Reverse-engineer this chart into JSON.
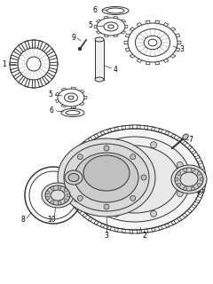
{
  "bg_color": "#ffffff",
  "lc": "#333333",
  "lw": 0.7,
  "figsize": [
    2.4,
    3.2
  ],
  "dpi": 100,
  "parts": {
    "label_fontsize": 5.5,
    "label_color": "black"
  }
}
